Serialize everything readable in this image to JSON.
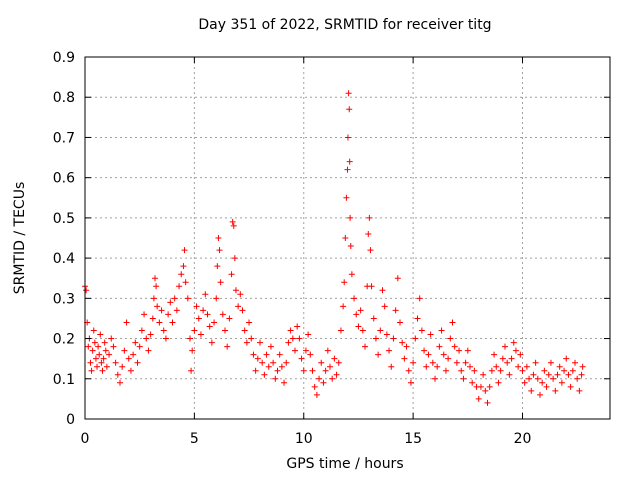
{
  "chart_data": {
    "type": "scatter",
    "title": "Day 351 of 2022, SRMTID for receiver titg",
    "xlabel": "GPS time / hours",
    "ylabel": "SRMTID / TECUs",
    "xlim": [
      0,
      24
    ],
    "ylim": [
      0,
      0.9
    ],
    "xticks": [
      "0",
      "5",
      "10",
      "15",
      "20"
    ],
    "yticks": [
      "0",
      "0.1",
      "0.2",
      "0.3",
      "0.4",
      "0.5",
      "0.6",
      "0.7",
      "0.8",
      "0.9"
    ],
    "grid": true,
    "marker": "+",
    "colors": {
      "series": "#ff0000",
      "grid": "#a0a0a0",
      "axis": "#000000"
    },
    "series": [
      {
        "name": "SRMTID",
        "points": [
          [
            0.0,
            0.33
          ],
          [
            0.05,
            0.32
          ],
          [
            0.1,
            0.24
          ],
          [
            0.15,
            0.18
          ],
          [
            0.2,
            0.2
          ],
          [
            0.25,
            0.14
          ],
          [
            0.3,
            0.12
          ],
          [
            0.35,
            0.17
          ],
          [
            0.4,
            0.22
          ],
          [
            0.45,
            0.19
          ],
          [
            0.5,
            0.15
          ],
          [
            0.55,
            0.13
          ],
          [
            0.6,
            0.18
          ],
          [
            0.65,
            0.16
          ],
          [
            0.7,
            0.21
          ],
          [
            0.75,
            0.14
          ],
          [
            0.8,
            0.12
          ],
          [
            0.85,
            0.15
          ],
          [
            0.9,
            0.19
          ],
          [
            0.95,
            0.17
          ],
          [
            1.0,
            0.13
          ],
          [
            1.1,
            0.16
          ],
          [
            1.2,
            0.2
          ],
          [
            1.3,
            0.18
          ],
          [
            1.4,
            0.14
          ],
          [
            1.5,
            0.11
          ],
          [
            1.6,
            0.09
          ],
          [
            1.7,
            0.13
          ],
          [
            1.8,
            0.17
          ],
          [
            1.9,
            0.24
          ],
          [
            2.0,
            0.15
          ],
          [
            2.1,
            0.12
          ],
          [
            2.2,
            0.16
          ],
          [
            2.3,
            0.19
          ],
          [
            2.4,
            0.14
          ],
          [
            2.5,
            0.18
          ],
          [
            2.6,
            0.22
          ],
          [
            2.7,
            0.26
          ],
          [
            2.8,
            0.2
          ],
          [
            2.9,
            0.17
          ],
          [
            3.0,
            0.21
          ],
          [
            3.1,
            0.25
          ],
          [
            3.15,
            0.3
          ],
          [
            3.2,
            0.35
          ],
          [
            3.25,
            0.33
          ],
          [
            3.3,
            0.28
          ],
          [
            3.4,
            0.24
          ],
          [
            3.5,
            0.27
          ],
          [
            3.6,
            0.22
          ],
          [
            3.7,
            0.2
          ],
          [
            3.8,
            0.26
          ],
          [
            3.9,
            0.29
          ],
          [
            4.0,
            0.24
          ],
          [
            4.1,
            0.3
          ],
          [
            4.2,
            0.27
          ],
          [
            4.3,
            0.33
          ],
          [
            4.4,
            0.36
          ],
          [
            4.5,
            0.38
          ],
          [
            4.55,
            0.42
          ],
          [
            4.6,
            0.34
          ],
          [
            4.7,
            0.3
          ],
          [
            4.8,
            0.2
          ],
          [
            4.85,
            0.12
          ],
          [
            4.9,
            0.17
          ],
          [
            5.0,
            0.22
          ],
          [
            5.1,
            0.28
          ],
          [
            5.2,
            0.25
          ],
          [
            5.3,
            0.21
          ],
          [
            5.4,
            0.27
          ],
          [
            5.5,
            0.31
          ],
          [
            5.6,
            0.26
          ],
          [
            5.7,
            0.23
          ],
          [
            5.8,
            0.19
          ],
          [
            5.9,
            0.24
          ],
          [
            6.0,
            0.3
          ],
          [
            6.05,
            0.38
          ],
          [
            6.1,
            0.45
          ],
          [
            6.15,
            0.42
          ],
          [
            6.2,
            0.34
          ],
          [
            6.3,
            0.26
          ],
          [
            6.4,
            0.22
          ],
          [
            6.5,
            0.18
          ],
          [
            6.6,
            0.25
          ],
          [
            6.7,
            0.36
          ],
          [
            6.75,
            0.49
          ],
          [
            6.8,
            0.48
          ],
          [
            6.85,
            0.4
          ],
          [
            6.9,
            0.32
          ],
          [
            7.0,
            0.28
          ],
          [
            7.1,
            0.31
          ],
          [
            7.2,
            0.27
          ],
          [
            7.3,
            0.22
          ],
          [
            7.4,
            0.19
          ],
          [
            7.5,
            0.24
          ],
          [
            7.6,
            0.2
          ],
          [
            7.7,
            0.16
          ],
          [
            7.8,
            0.12
          ],
          [
            7.9,
            0.15
          ],
          [
            8.0,
            0.19
          ],
          [
            8.1,
            0.14
          ],
          [
            8.2,
            0.11
          ],
          [
            8.3,
            0.16
          ],
          [
            8.4,
            0.13
          ],
          [
            8.5,
            0.18
          ],
          [
            8.6,
            0.14
          ],
          [
            8.7,
            0.1
          ],
          [
            8.8,
            0.12
          ],
          [
            8.9,
            0.16
          ],
          [
            9.0,
            0.13
          ],
          [
            9.1,
            0.09
          ],
          [
            9.2,
            0.14
          ],
          [
            9.3,
            0.19
          ],
          [
            9.4,
            0.22
          ],
          [
            9.5,
            0.2
          ],
          [
            9.6,
            0.17
          ],
          [
            9.7,
            0.23
          ],
          [
            9.8,
            0.2
          ],
          [
            9.9,
            0.15
          ],
          [
            10.0,
            0.12
          ],
          [
            10.1,
            0.17
          ],
          [
            10.2,
            0.21
          ],
          [
            10.3,
            0.16
          ],
          [
            10.4,
            0.12
          ],
          [
            10.5,
            0.08
          ],
          [
            10.6,
            0.06
          ],
          [
            10.7,
            0.1
          ],
          [
            10.8,
            0.14
          ],
          [
            10.9,
            0.09
          ],
          [
            11.0,
            0.12
          ],
          [
            11.1,
            0.17
          ],
          [
            11.2,
            0.13
          ],
          [
            11.3,
            0.1
          ],
          [
            11.4,
            0.15
          ],
          [
            11.5,
            0.11
          ],
          [
            11.6,
            0.14
          ],
          [
            11.7,
            0.22
          ],
          [
            11.8,
            0.28
          ],
          [
            11.85,
            0.34
          ],
          [
            11.9,
            0.45
          ],
          [
            11.95,
            0.55
          ],
          [
            12.0,
            0.62
          ],
          [
            12.02,
            0.7
          ],
          [
            12.05,
            0.81
          ],
          [
            12.08,
            0.77
          ],
          [
            12.1,
            0.64
          ],
          [
            12.12,
            0.5
          ],
          [
            12.15,
            0.43
          ],
          [
            12.2,
            0.36
          ],
          [
            12.3,
            0.3
          ],
          [
            12.4,
            0.26
          ],
          [
            12.5,
            0.23
          ],
          [
            12.6,
            0.27
          ],
          [
            12.7,
            0.22
          ],
          [
            12.8,
            0.18
          ],
          [
            12.9,
            0.33
          ],
          [
            12.95,
            0.46
          ],
          [
            13.0,
            0.5
          ],
          [
            13.05,
            0.42
          ],
          [
            13.1,
            0.33
          ],
          [
            13.2,
            0.25
          ],
          [
            13.3,
            0.2
          ],
          [
            13.4,
            0.16
          ],
          [
            13.5,
            0.22
          ],
          [
            13.6,
            0.32
          ],
          [
            13.7,
            0.28
          ],
          [
            13.8,
            0.21
          ],
          [
            13.9,
            0.17
          ],
          [
            14.0,
            0.13
          ],
          [
            14.1,
            0.2
          ],
          [
            14.2,
            0.27
          ],
          [
            14.3,
            0.35
          ],
          [
            14.4,
            0.24
          ],
          [
            14.5,
            0.19
          ],
          [
            14.6,
            0.15
          ],
          [
            14.7,
            0.18
          ],
          [
            14.8,
            0.12
          ],
          [
            14.9,
            0.09
          ],
          [
            15.0,
            0.14
          ],
          [
            15.1,
            0.2
          ],
          [
            15.2,
            0.25
          ],
          [
            15.3,
            0.3
          ],
          [
            15.4,
            0.22
          ],
          [
            15.5,
            0.17
          ],
          [
            15.6,
            0.13
          ],
          [
            15.7,
            0.16
          ],
          [
            15.8,
            0.21
          ],
          [
            15.9,
            0.14
          ],
          [
            16.0,
            0.1
          ],
          [
            16.1,
            0.13
          ],
          [
            16.2,
            0.18
          ],
          [
            16.3,
            0.22
          ],
          [
            16.4,
            0.16
          ],
          [
            16.5,
            0.12
          ],
          [
            16.6,
            0.15
          ],
          [
            16.7,
            0.2
          ],
          [
            16.8,
            0.24
          ],
          [
            16.9,
            0.18
          ],
          [
            17.0,
            0.14
          ],
          [
            17.1,
            0.17
          ],
          [
            17.2,
            0.12
          ],
          [
            17.3,
            0.1
          ],
          [
            17.4,
            0.14
          ],
          [
            17.5,
            0.17
          ],
          [
            17.6,
            0.13
          ],
          [
            17.7,
            0.09
          ],
          [
            17.8,
            0.12
          ],
          [
            17.9,
            0.08
          ],
          [
            18.0,
            0.05
          ],
          [
            18.1,
            0.08
          ],
          [
            18.2,
            0.11
          ],
          [
            18.3,
            0.07
          ],
          [
            18.4,
            0.04
          ],
          [
            18.5,
            0.08
          ],
          [
            18.6,
            0.12
          ],
          [
            18.7,
            0.16
          ],
          [
            18.8,
            0.13
          ],
          [
            18.9,
            0.09
          ],
          [
            19.0,
            0.12
          ],
          [
            19.1,
            0.15
          ],
          [
            19.2,
            0.18
          ],
          [
            19.3,
            0.14
          ],
          [
            19.4,
            0.11
          ],
          [
            19.5,
            0.15
          ],
          [
            19.6,
            0.19
          ],
          [
            19.7,
            0.17
          ],
          [
            19.8,
            0.13
          ],
          [
            19.9,
            0.16
          ],
          [
            20.0,
            0.12
          ],
          [
            20.1,
            0.09
          ],
          [
            20.2,
            0.13
          ],
          [
            20.3,
            0.1
          ],
          [
            20.4,
            0.07
          ],
          [
            20.5,
            0.11
          ],
          [
            20.6,
            0.14
          ],
          [
            20.7,
            0.1
          ],
          [
            20.8,
            0.06
          ],
          [
            20.9,
            0.09
          ],
          [
            21.0,
            0.12
          ],
          [
            21.1,
            0.08
          ],
          [
            21.2,
            0.11
          ],
          [
            21.3,
            0.14
          ],
          [
            21.4,
            0.1
          ],
          [
            21.5,
            0.07
          ],
          [
            21.6,
            0.11
          ],
          [
            21.7,
            0.13
          ],
          [
            21.8,
            0.09
          ],
          [
            21.9,
            0.12
          ],
          [
            22.0,
            0.15
          ],
          [
            22.1,
            0.11
          ],
          [
            22.2,
            0.08
          ],
          [
            22.3,
            0.12
          ],
          [
            22.4,
            0.14
          ],
          [
            22.5,
            0.1
          ],
          [
            22.6,
            0.07
          ],
          [
            22.7,
            0.11
          ],
          [
            22.75,
            0.13
          ]
        ]
      }
    ]
  }
}
